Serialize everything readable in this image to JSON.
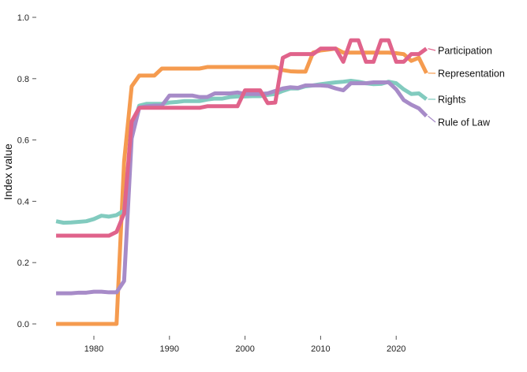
{
  "chart_data": {
    "type": "line",
    "title": "",
    "xlabel": "",
    "ylabel": "Index value",
    "xlim": [
      1975,
      2024
    ],
    "ylim": [
      0,
      1
    ],
    "x_ticks": [
      1980,
      1990,
      2000,
      2010,
      2020
    ],
    "y_ticks": [
      "0.0",
      "0.2",
      "0.4",
      "0.6",
      "0.8",
      "1.0"
    ],
    "y_tick_values": [
      0,
      0.2,
      0.4,
      0.6,
      0.8,
      1.0
    ],
    "grid": false,
    "legend": "direct labels at right end of lines",
    "x": [
      1975,
      1976,
      1977,
      1978,
      1979,
      1980,
      1981,
      1982,
      1983,
      1984,
      1985,
      1986,
      1987,
      1988,
      1989,
      1990,
      1991,
      1992,
      1993,
      1994,
      1995,
      1996,
      1997,
      1998,
      1999,
      2000,
      2001,
      2002,
      2003,
      2004,
      2005,
      2006,
      2007,
      2008,
      2009,
      2010,
      2011,
      2012,
      2013,
      2014,
      2015,
      2016,
      2017,
      2018,
      2019,
      2020,
      2021,
      2022,
      2023,
      2024
    ],
    "series": [
      {
        "name": "Representation",
        "color": "#f59b4f",
        "values": [
          0,
          0,
          0,
          0,
          0,
          0,
          0,
          0,
          0,
          0.53,
          0.775,
          0.81,
          0.81,
          0.81,
          0.833,
          0.833,
          0.833,
          0.833,
          0.833,
          0.833,
          0.838,
          0.838,
          0.838,
          0.838,
          0.838,
          0.838,
          0.838,
          0.838,
          0.838,
          0.838,
          0.828,
          0.824,
          0.823,
          0.823,
          0.885,
          0.892,
          0.895,
          0.898,
          0.885,
          0.885,
          0.885,
          0.885,
          0.885,
          0.885,
          0.885,
          0.883,
          0.88,
          0.858,
          0.868,
          0.818
        ]
      },
      {
        "name": "Rights",
        "color": "#82cbbf",
        "values": [
          0.335,
          0.33,
          0.331,
          0.333,
          0.335,
          0.342,
          0.353,
          0.35,
          0.355,
          0.37,
          0.63,
          0.712,
          0.718,
          0.718,
          0.718,
          0.722,
          0.724,
          0.727,
          0.727,
          0.727,
          0.732,
          0.735,
          0.735,
          0.74,
          0.742,
          0.742,
          0.743,
          0.743,
          0.747,
          0.75,
          0.76,
          0.768,
          0.768,
          0.775,
          0.778,
          0.782,
          0.785,
          0.788,
          0.79,
          0.793,
          0.79,
          0.785,
          0.782,
          0.783,
          0.79,
          0.785,
          0.765,
          0.75,
          0.752,
          0.733
        ]
      },
      {
        "name": "Rule of Law",
        "color": "#a78bc8",
        "values": [
          0.1,
          0.1,
          0.1,
          0.102,
          0.102,
          0.105,
          0.105,
          0.103,
          0.103,
          0.14,
          0.605,
          0.705,
          0.71,
          0.712,
          0.712,
          0.745,
          0.745,
          0.745,
          0.745,
          0.74,
          0.74,
          0.752,
          0.752,
          0.752,
          0.755,
          0.75,
          0.75,
          0.75,
          0.752,
          0.76,
          0.768,
          0.772,
          0.77,
          0.778,
          0.778,
          0.778,
          0.776,
          0.768,
          0.762,
          0.785,
          0.785,
          0.785,
          0.788,
          0.788,
          0.788,
          0.765,
          0.73,
          0.715,
          0.703,
          0.678
        ]
      },
      {
        "name": "Participation",
        "color": "#e0638b",
        "values": [
          0.288,
          0.288,
          0.288,
          0.288,
          0.288,
          0.288,
          0.288,
          0.288,
          0.3,
          0.36,
          0.66,
          0.705,
          0.705,
          0.705,
          0.705,
          0.705,
          0.705,
          0.705,
          0.705,
          0.705,
          0.71,
          0.71,
          0.71,
          0.71,
          0.71,
          0.762,
          0.762,
          0.762,
          0.72,
          0.722,
          0.868,
          0.88,
          0.88,
          0.88,
          0.88,
          0.898,
          0.898,
          0.898,
          0.855,
          0.925,
          0.925,
          0.855,
          0.855,
          0.925,
          0.925,
          0.855,
          0.855,
          0.88,
          0.88,
          0.898
        ]
      }
    ]
  }
}
